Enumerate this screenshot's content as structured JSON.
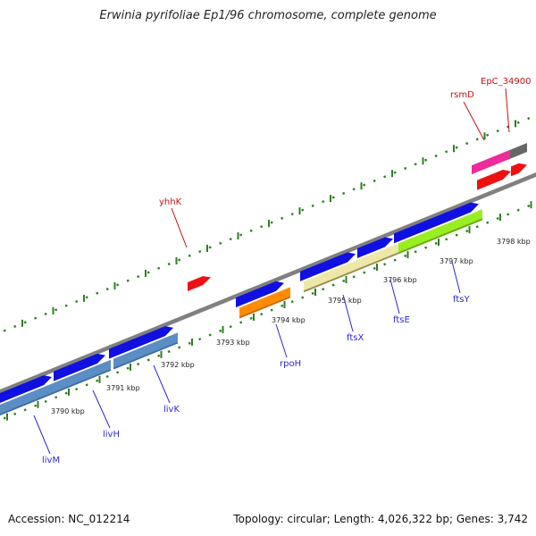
{
  "title": "Erwinia pyrifoliae Ep1/96 chromosome, complete genome",
  "footer": {
    "accession": "Accession: NC_012214",
    "summary": "Topology: circular; Length: 4,026,322 bp; Genes: 3,742"
  },
  "colors": {
    "backbone": "#808080",
    "tick": "#2e7d22",
    "forward_gene": "#1010e0",
    "red_gene": "#ee1111",
    "label_blue": "#2a2ad0",
    "label_red": "#cc1111"
  },
  "scale_ticks": [
    {
      "label": "3790 kbp"
    },
    {
      "label": "3791 kbp"
    },
    {
      "label": "3792 kbp"
    },
    {
      "label": "3793 kbp"
    },
    {
      "label": "3794 kbp"
    },
    {
      "label": "3795 kbp"
    },
    {
      "label": "3796 kbp"
    },
    {
      "label": "3797 kbp"
    },
    {
      "label": "3798 kbp"
    }
  ],
  "gene_labels": [
    {
      "id": "livM",
      "text": "livM",
      "color": "#2a2ad0"
    },
    {
      "id": "livH",
      "text": "livH",
      "color": "#2a2ad0"
    },
    {
      "id": "livK",
      "text": "livK",
      "color": "#2a2ad0"
    },
    {
      "id": "rpoH",
      "text": "rpoH",
      "color": "#2a2ad0"
    },
    {
      "id": "ftsX",
      "text": "ftsX",
      "color": "#2a2ad0"
    },
    {
      "id": "ftsE",
      "text": "ftsE",
      "color": "#2a2ad0"
    },
    {
      "id": "ftsY",
      "text": "ftsY",
      "color": "#2a2ad0"
    },
    {
      "id": "yhhK",
      "text": "yhhK",
      "color": "#cc1111"
    },
    {
      "id": "rsmD",
      "text": "rsmD",
      "color": "#cc1111"
    },
    {
      "id": "EpC_34900",
      "text": "EpC_34900",
      "color": "#cc1111"
    }
  ]
}
